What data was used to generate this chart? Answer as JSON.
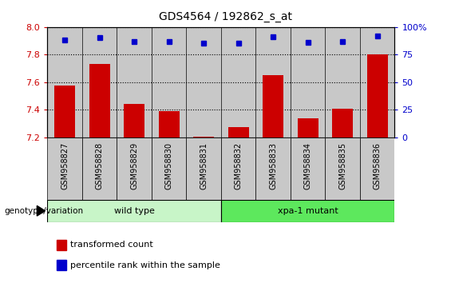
{
  "title": "GDS4564 / 192862_s_at",
  "samples": [
    "GSM958827",
    "GSM958828",
    "GSM958829",
    "GSM958830",
    "GSM958831",
    "GSM958832",
    "GSM958833",
    "GSM958834",
    "GSM958835",
    "GSM958836"
  ],
  "transformed_count": [
    7.575,
    7.73,
    7.44,
    7.39,
    7.205,
    7.275,
    7.65,
    7.335,
    7.405,
    7.8
  ],
  "percentile_rank": [
    88,
    90,
    87,
    87,
    85,
    85,
    91,
    86,
    87,
    92
  ],
  "ylim_left": [
    7.2,
    8.0
  ],
  "ylim_right": [
    0,
    100
  ],
  "yticks_left": [
    7.2,
    7.4,
    7.6,
    7.8,
    8.0
  ],
  "yticks_right": [
    0,
    25,
    50,
    75,
    100
  ],
  "groups": [
    {
      "label": "wild type",
      "start": 0,
      "end": 5,
      "color": "#c8f5c8"
    },
    {
      "label": "xpa-1 mutant",
      "start": 5,
      "end": 10,
      "color": "#5de85d"
    }
  ],
  "group_label": "genotype/variation",
  "bar_color": "#cc0000",
  "dot_color": "#0000cc",
  "bar_width": 0.6,
  "tick_color_left": "#cc0000",
  "tick_color_right": "#0000cc",
  "col_bg_color": "#c8c8c8",
  "legend_items": [
    {
      "label": "transformed count",
      "color": "#cc0000"
    },
    {
      "label": "percentile rank within the sample",
      "color": "#0000cc"
    }
  ]
}
